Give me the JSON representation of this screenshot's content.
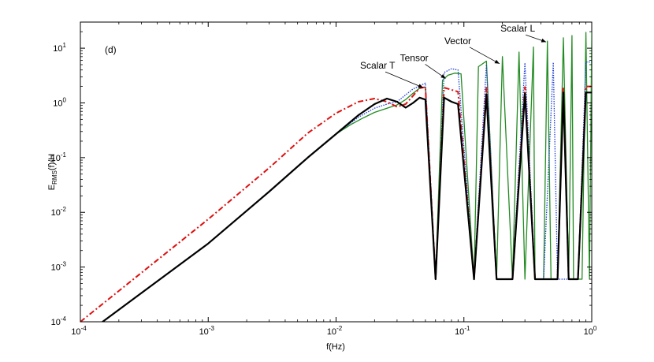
{
  "chart_data": {
    "type": "line",
    "panel_label": "(d)",
    "xlabel": "f(Hz)",
    "ylabel": {
      "prefix": "E",
      "sub": "RMS",
      "suffix": "(f)/H"
    },
    "x_scale": "log",
    "y_scale": "log",
    "xlim": [
      0.0001,
      1
    ],
    "ylim": [
      0.0001,
      30
    ],
    "x_ticks": [
      {
        "value": 0.0001,
        "base": "10",
        "exp": "-4"
      },
      {
        "value": 0.001,
        "base": "10",
        "exp": "-3"
      },
      {
        "value": 0.01,
        "base": "10",
        "exp": "-2"
      },
      {
        "value": 0.1,
        "base": "10",
        "exp": "-1"
      },
      {
        "value": 1,
        "base": "10",
        "exp": "0"
      }
    ],
    "y_ticks": [
      {
        "value": 0.0001,
        "base": "10",
        "exp": "-4"
      },
      {
        "value": 0.001,
        "base": "10",
        "exp": "-3"
      },
      {
        "value": 0.01,
        "base": "10",
        "exp": "-2"
      },
      {
        "value": 0.1,
        "base": "10",
        "exp": "-1"
      },
      {
        "value": 1,
        "base": "10",
        "exp": "0"
      },
      {
        "value": 10,
        "base": "10",
        "exp": "1"
      }
    ],
    "grid": false,
    "series": [
      {
        "name": "Scalar L",
        "color": "#228b22",
        "style": "solid",
        "points": [
          [
            0.0001,
            5e-05
          ],
          [
            0.001,
            0.0027
          ],
          [
            0.003,
            0.024
          ],
          [
            0.006,
            0.1
          ],
          [
            0.01,
            0.27
          ],
          [
            0.013,
            0.4
          ],
          [
            0.016,
            0.52
          ],
          [
            0.02,
            0.67
          ],
          [
            0.025,
            0.8
          ],
          [
            0.03,
            0.92
          ],
          [
            0.035,
            1.15
          ],
          [
            0.04,
            1.5
          ],
          [
            0.045,
            1.85
          ],
          [
            0.05,
            1.95
          ],
          [
            0.06,
            0.0006
          ],
          [
            0.068,
            2.6
          ],
          [
            0.075,
            3.2
          ],
          [
            0.085,
            3.5
          ],
          [
            0.095,
            3.4
          ],
          [
            0.12,
            0.0006
          ],
          [
            0.13,
            4.6
          ],
          [
            0.15,
            5.8
          ],
          [
            0.18,
            0.0006
          ],
          [
            0.2,
            7.0
          ],
          [
            0.24,
            0.0006
          ],
          [
            0.27,
            8.5
          ],
          [
            0.3,
            0.0006
          ],
          [
            0.35,
            10.5
          ],
          [
            0.36,
            0.0006
          ],
          [
            0.42,
            0.0006
          ],
          [
            0.45,
            13.5
          ],
          [
            0.48,
            0.0006
          ],
          [
            0.54,
            0.0006
          ],
          [
            0.6,
            15.5
          ],
          [
            0.66,
            0.0006
          ],
          [
            0.7,
            17.0
          ],
          [
            0.72,
            0.0006
          ],
          [
            0.78,
            0.0006
          ],
          [
            0.84,
            0.0006
          ],
          [
            0.9,
            19.5
          ],
          [
            0.96,
            0.0006
          ],
          [
            1.0,
            20
          ]
        ]
      },
      {
        "name": "Vector",
        "color": "#1f3fd6",
        "style": "dotted",
        "points": [
          [
            0.0001,
            5e-05
          ],
          [
            0.001,
            0.0027
          ],
          [
            0.003,
            0.024
          ],
          [
            0.006,
            0.1
          ],
          [
            0.01,
            0.27
          ],
          [
            0.015,
            0.55
          ],
          [
            0.02,
            0.8
          ],
          [
            0.025,
            0.95
          ],
          [
            0.03,
            1.05
          ],
          [
            0.04,
            1.8
          ],
          [
            0.05,
            2.3
          ],
          [
            0.06,
            0.0006
          ],
          [
            0.07,
            3.6
          ],
          [
            0.08,
            4.2
          ],
          [
            0.09,
            4.0
          ],
          [
            0.12,
            0.0006
          ],
          [
            0.15,
            5.0
          ],
          [
            0.18,
            0.0006
          ],
          [
            0.24,
            0.0006
          ],
          [
            0.3,
            5.4
          ],
          [
            0.36,
            0.0006
          ],
          [
            0.42,
            0.0006
          ],
          [
            0.5,
            5.5
          ],
          [
            0.54,
            0.0006
          ],
          [
            0.66,
            0.0006
          ],
          [
            0.78,
            0.0006
          ],
          [
            0.9,
            5.6
          ],
          [
            1.0,
            5.6
          ]
        ]
      },
      {
        "name": "Scalar T",
        "color": "#e01010",
        "style": "dashdot",
        "points": [
          [
            0.0001,
            0.0001
          ],
          [
            0.001,
            0.0075
          ],
          [
            0.003,
            0.065
          ],
          [
            0.006,
            0.28
          ],
          [
            0.01,
            0.65
          ],
          [
            0.015,
            1.05
          ],
          [
            0.02,
            1.2
          ],
          [
            0.025,
            1.05
          ],
          [
            0.03,
            0.85
          ],
          [
            0.035,
            0.95
          ],
          [
            0.04,
            1.35
          ],
          [
            0.045,
            1.85
          ],
          [
            0.05,
            1.95
          ],
          [
            0.06,
            0.0006
          ],
          [
            0.07,
            1.9
          ],
          [
            0.09,
            1.6
          ],
          [
            0.12,
            0.0006
          ],
          [
            0.15,
            1.9
          ],
          [
            0.18,
            0.0006
          ],
          [
            0.24,
            0.0006
          ],
          [
            0.3,
            1.95
          ],
          [
            0.36,
            0.0006
          ],
          [
            0.42,
            0.0006
          ],
          [
            0.54,
            0.0006
          ],
          [
            0.6,
            1.95
          ],
          [
            0.66,
            0.0006
          ],
          [
            0.78,
            0.0006
          ],
          [
            0.9,
            2.0
          ],
          [
            1.0,
            2.0
          ]
        ]
      },
      {
        "name": "Tensor",
        "color": "#000000",
        "style": "solid",
        "points": [
          [
            0.0001,
            5e-05
          ],
          [
            0.001,
            0.0027
          ],
          [
            0.003,
            0.024
          ],
          [
            0.006,
            0.1
          ],
          [
            0.01,
            0.27
          ],
          [
            0.015,
            0.6
          ],
          [
            0.02,
            0.95
          ],
          [
            0.025,
            1.2
          ],
          [
            0.03,
            1.05
          ],
          [
            0.035,
            0.82
          ],
          [
            0.04,
            1.0
          ],
          [
            0.045,
            1.25
          ],
          [
            0.05,
            1.15
          ],
          [
            0.06,
            0.0006
          ],
          [
            0.07,
            1.25
          ],
          [
            0.08,
            1.05
          ],
          [
            0.09,
            0.95
          ],
          [
            0.12,
            0.0006
          ],
          [
            0.15,
            1.45
          ],
          [
            0.18,
            0.0006
          ],
          [
            0.24,
            0.0006
          ],
          [
            0.3,
            1.5
          ],
          [
            0.36,
            0.0006
          ],
          [
            0.42,
            0.0006
          ],
          [
            0.54,
            0.0006
          ],
          [
            0.6,
            1.55
          ],
          [
            0.66,
            0.0006
          ],
          [
            0.78,
            0.0006
          ],
          [
            0.9,
            1.55
          ],
          [
            1.0,
            1.55
          ]
        ]
      }
    ],
    "annotations": [
      {
        "text": "Scalar L",
        "target": [
          0.44,
          13.0
        ]
      },
      {
        "text": "Vector",
        "target": [
          0.19,
          5.2
        ]
      },
      {
        "text": "Tensor",
        "target": [
          0.072,
          2.8
        ]
      },
      {
        "text": "Scalar T",
        "target": [
          0.048,
          1.9
        ]
      }
    ]
  }
}
